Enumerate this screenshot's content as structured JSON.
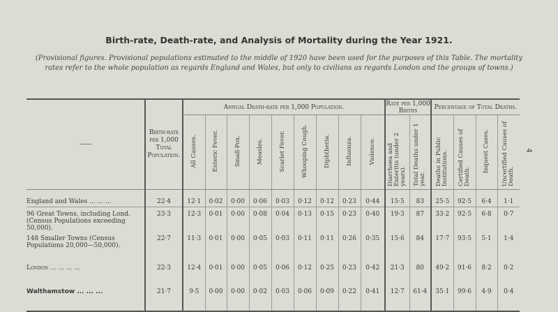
{
  "title": "Birth-rate, Death-rate, and Analysis of Mortality during the Year 1921.",
  "note": "(Provisional figures. Provisional populations estimated to the middle of 1920 have been used for the purposes of this Table. The mortality rates refer to the whole population as regards England and Wales, but only to civilians as regards London and the groups of towns.)",
  "page_number": "4",
  "headers": {
    "stub": "——",
    "birth_rate": "Birth-rate per 1,000 Total Population.",
    "group_death": "Annual Death-rate per 1,000 Population.",
    "group_births": "Rate per 1,000 Births",
    "group_pct": "Percentage of Total Deaths.",
    "columns": [
      "All Causes.",
      "Enteric Fever.",
      "Small-Pox.",
      "Measles.",
      "Scarlet Fever.",
      "Whooping Cough.",
      "Diphtheria.",
      "Influenza.",
      "Violence.",
      "Diarrhoea and Enteritis (under 2 years).",
      "Total Deaths under 1 year.",
      "Deaths in Public Institutions.",
      "Certified Causes of Death.",
      "Inquest Cases.",
      "Uncertified Causes of Death."
    ]
  },
  "rows": [
    {
      "label": "England and Wales ... ... ...",
      "values": [
        "22·4",
        "12·1",
        "0·02",
        "0·00",
        "0·06",
        "0·03",
        "0·12",
        "0·12",
        "0·23",
        "0·44",
        "15·5",
        "83",
        "25·5",
        "92·5",
        "6·4",
        "1·1"
      ]
    },
    {
      "label": "96 Great Towns, including Lond.(Census Populations exceeding 50,000).",
      "values": [
        "23·3",
        "12·3",
        "0·01",
        "0·00",
        "0·08",
        "0·04",
        "0·13",
        "0·15",
        "0·23",
        "0·40",
        "19·3",
        "87",
        "33·2",
        "92·5",
        "6·8",
        "0·7"
      ]
    },
    {
      "label": "148 Smaller Towns (Census Populations 20,000—50,000).",
      "values": [
        "22·7",
        "11·3",
        "0·01",
        "0·00",
        "0·05",
        "0·03",
        "0·11",
        "0·11",
        "0·26",
        "0·35",
        "15·6",
        "84",
        "17·7",
        "93·5",
        "5·1",
        "1·4"
      ]
    },
    {
      "label": "London ... ... ... ...",
      "values": [
        "22·3",
        "12·4",
        "0·01",
        "0·00",
        "0·05",
        "0·06",
        "0·12",
        "0·25",
        "0·23",
        "0·42",
        "21·3",
        "80",
        "49·2",
        "91·6",
        "8·2",
        "0·2"
      ]
    },
    {
      "label": "Walthamstow ... ... ...",
      "values": [
        "21·7",
        "9·5",
        "0·00",
        "0·00",
        "0·02",
        "0·03",
        "0·06",
        "0·09",
        "0·22",
        "0·41",
        "12·7",
        "61·4",
        "35·1",
        "99·6",
        "4·9",
        "0·4"
      ]
    }
  ]
}
